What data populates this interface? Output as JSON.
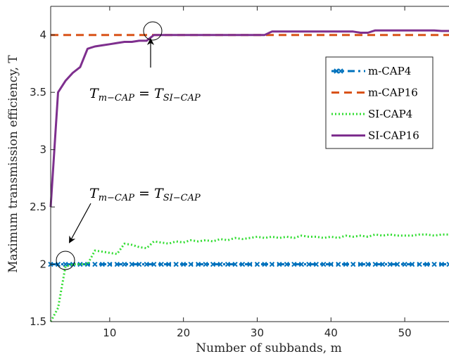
{
  "chart_data": {
    "type": "line",
    "title": "",
    "xlabel": "Number of subbands, m",
    "ylabel": "Maximum transmission efficiency, T",
    "xlim": [
      2,
      56
    ],
    "ylim": [
      1.5,
      4.25
    ],
    "xticks": [
      10,
      20,
      30,
      40,
      50
    ],
    "yticks": [
      1.5,
      2,
      2.5,
      3,
      3.5,
      4
    ],
    "xtick_labels": [
      "10",
      "20",
      "30",
      "40",
      "50"
    ],
    "ytick_labels": [
      "1.5",
      "2",
      "2.5",
      "3",
      "3.5",
      "4"
    ],
    "grid": false,
    "legend_position": "top-right",
    "series": [
      {
        "name": "m-CAP4",
        "color": "#0072BD",
        "style": "dash-dot-marker",
        "x": [
          2,
          56
        ],
        "y": [
          2,
          2
        ]
      },
      {
        "name": "m-CAP16",
        "color": "#D95319",
        "style": "dashed",
        "x": [
          2,
          56
        ],
        "y": [
          4,
          4
        ]
      },
      {
        "name": "SI-CAP4",
        "color": "#33DD33",
        "style": "dotted",
        "x": [
          2,
          3,
          4,
          5,
          6,
          7,
          8,
          9,
          10,
          11,
          12,
          13,
          14,
          15,
          16,
          17,
          18,
          19,
          20,
          21,
          22,
          23,
          24,
          25,
          26,
          27,
          28,
          29,
          30,
          31,
          32,
          33,
          34,
          35,
          36,
          37,
          38,
          39,
          40,
          41,
          42,
          43,
          44,
          45,
          46,
          47,
          48,
          49,
          50,
          51,
          52,
          53,
          54,
          55,
          56
        ],
        "y": [
          1.5,
          1.62,
          1.98,
          2.0,
          2.0,
          2.0,
          2.12,
          2.11,
          2.1,
          2.09,
          2.18,
          2.17,
          2.15,
          2.14,
          2.2,
          2.19,
          2.18,
          2.2,
          2.19,
          2.21,
          2.2,
          2.21,
          2.2,
          2.22,
          2.21,
          2.23,
          2.22,
          2.23,
          2.24,
          2.23,
          2.24,
          2.23,
          2.24,
          2.23,
          2.25,
          2.24,
          2.24,
          2.23,
          2.24,
          2.23,
          2.25,
          2.24,
          2.25,
          2.24,
          2.26,
          2.25,
          2.26,
          2.25,
          2.25,
          2.25,
          2.26,
          2.26,
          2.25,
          2.26,
          2.26
        ]
      },
      {
        "name": "SI-CAP16",
        "color": "#7E2F8E",
        "style": "solid",
        "x": [
          2,
          3,
          4,
          5,
          6,
          7,
          8,
          9,
          10,
          11,
          12,
          13,
          14,
          15,
          16,
          17,
          18,
          19,
          20,
          21,
          22,
          23,
          24,
          25,
          26,
          27,
          28,
          29,
          30,
          31,
          32,
          33,
          34,
          35,
          36,
          37,
          38,
          39,
          40,
          41,
          42,
          43,
          44,
          45,
          46,
          47,
          48,
          49,
          50,
          51,
          52,
          53,
          54,
          55,
          56
        ],
        "y": [
          2.5,
          3.5,
          3.6,
          3.67,
          3.72,
          3.88,
          3.9,
          3.91,
          3.92,
          3.93,
          3.94,
          3.94,
          3.95,
          3.95,
          4.0,
          4.0,
          4.0,
          4.0,
          4.0,
          4.0,
          4.0,
          4.0,
          4.0,
          4.0,
          4.0,
          4.0,
          4.0,
          4.0,
          4.0,
          4.0,
          4.03,
          4.03,
          4.03,
          4.03,
          4.03,
          4.03,
          4.03,
          4.03,
          4.03,
          4.03,
          4.03,
          4.03,
          4.02,
          4.02,
          4.04,
          4.04,
          4.04,
          4.04,
          4.04,
          4.04,
          4.04,
          4.04,
          4.04,
          4.035,
          4.035
        ]
      }
    ],
    "annotations": [
      {
        "text_main": "T",
        "sub_left": "m−CAP",
        "equals": " = ",
        "text_main_right": "T",
        "sub_right": "SI−CAP",
        "target": [
          16,
          4.0
        ],
        "circle": true
      },
      {
        "text_main": "T",
        "sub_left": "m−CAP",
        "equals": " = ",
        "text_main_right": "T",
        "sub_right": "SI−CAP",
        "target": [
          4,
          2.0
        ],
        "circle": true
      }
    ]
  }
}
